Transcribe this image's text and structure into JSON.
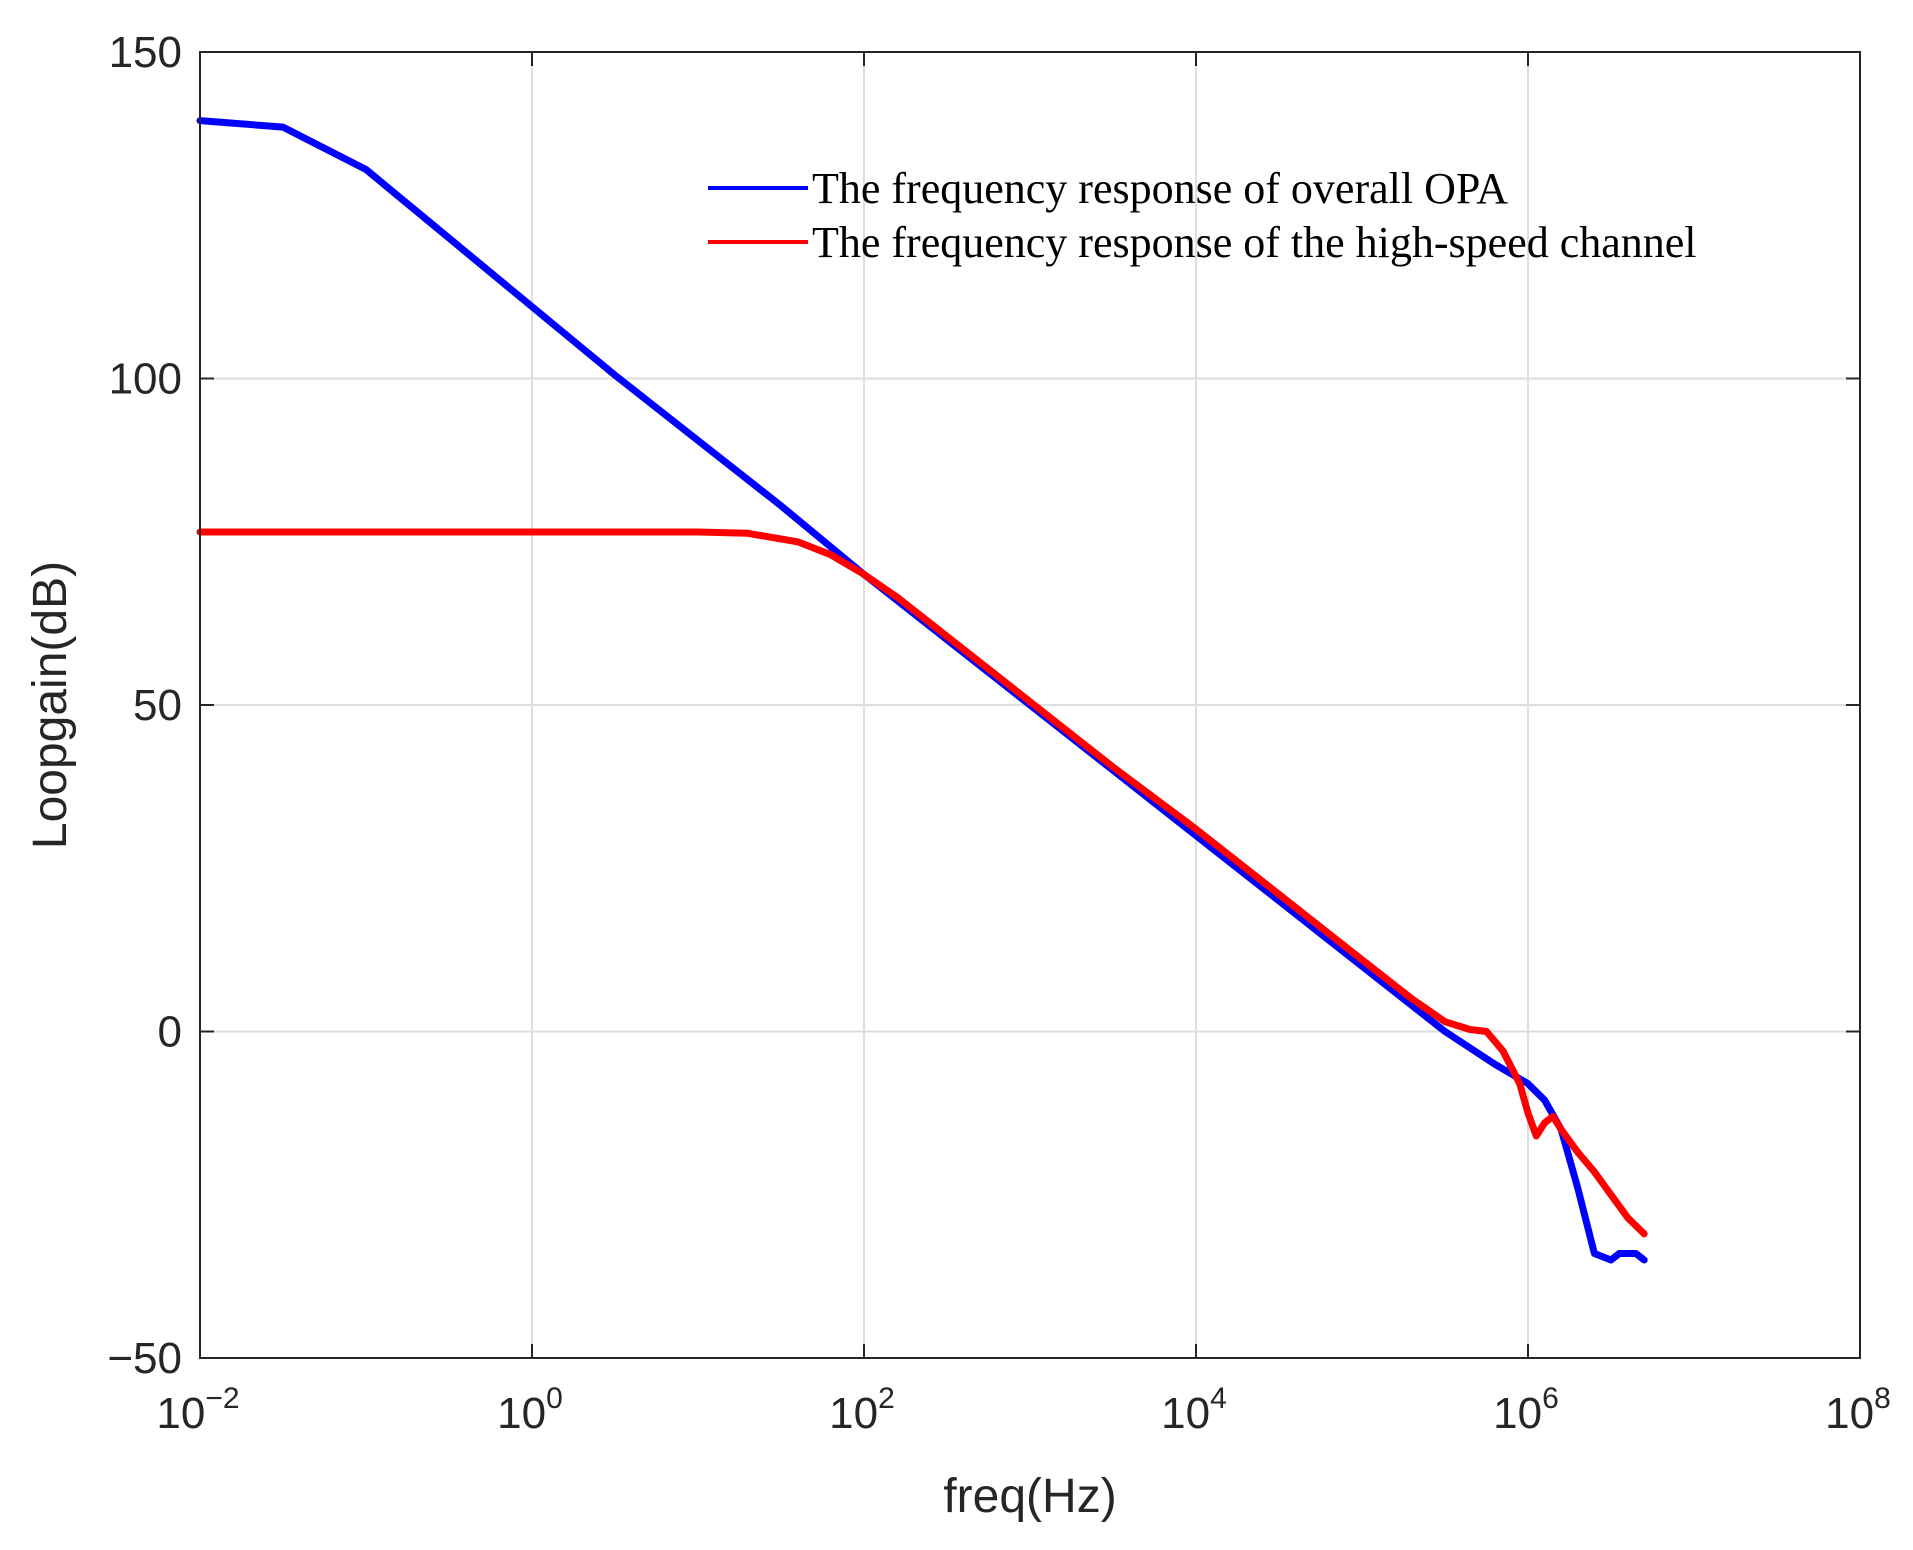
{
  "chart_data": {
    "type": "line",
    "title": "",
    "xlabel": "freq(Hz)",
    "ylabel": "Loopgain(dB)",
    "xscale": "log",
    "xlim_exponent": [
      -2,
      8
    ],
    "ylim": [
      -50,
      150
    ],
    "grid": true,
    "legend_placement": "top-right",
    "x_ticks": [
      {
        "base": "10",
        "exp": "−2"
      },
      {
        "base": "10",
        "exp": "0"
      },
      {
        "base": "10",
        "exp": "2"
      },
      {
        "base": "10",
        "exp": "4"
      },
      {
        "base": "10",
        "exp": "6"
      },
      {
        "base": "10",
        "exp": "8"
      }
    ],
    "y_ticks": [
      {
        "value": 150,
        "label": "150"
      },
      {
        "value": 100,
        "label": "100"
      },
      {
        "value": 50,
        "label": "50"
      },
      {
        "value": 0,
        "label": "0"
      },
      {
        "value": -50,
        "label": "−50"
      }
    ],
    "series": [
      {
        "name": "The frequency response of overall OPA",
        "color": "#0000ff",
        "log10_x": [
          -2,
          -1.5,
          -1,
          -0.5,
          0,
          0.5,
          1,
          1.5,
          2,
          2.5,
          3,
          3.5,
          4,
          4.5,
          4.8,
          5,
          5.3,
          5.5,
          5.8,
          6,
          6.1,
          6.2,
          6.3,
          6.4,
          6.5,
          6.55,
          6.6,
          6.65,
          6.7
        ],
        "values": [
          139.5,
          138.5,
          132,
          121.5,
          111,
          100.5,
          90.5,
          80.5,
          70,
          60,
          50,
          40,
          30,
          20,
          14,
          10,
          4,
          0,
          -5,
          -8,
          -10.5,
          -15,
          -24,
          -34,
          -35,
          -34,
          -34,
          -34,
          -35
        ]
      },
      {
        "name": "The frequency response of the high-speed channel",
        "color": "#ff0000",
        "log10_x": [
          -2,
          -1,
          0,
          1,
          1.3,
          1.6,
          1.8,
          2,
          2.2,
          2.5,
          3,
          3.5,
          4,
          4.5,
          5,
          5.3,
          5.5,
          5.65,
          5.75,
          5.85,
          5.95,
          6.0,
          6.05,
          6.1,
          6.15,
          6.2,
          6.3,
          6.4,
          6.5,
          6.6,
          6.7
        ],
        "values": [
          76.5,
          76.5,
          76.5,
          76.5,
          76.3,
          75,
          73,
          70,
          66.5,
          60.5,
          50.5,
          40.5,
          31,
          21,
          11,
          5,
          1.5,
          0.3,
          0,
          -3,
          -8,
          -12.5,
          -16,
          -14,
          -13,
          -15,
          -18.5,
          -21.5,
          -25,
          -28.5,
          -31
        ]
      }
    ]
  }
}
